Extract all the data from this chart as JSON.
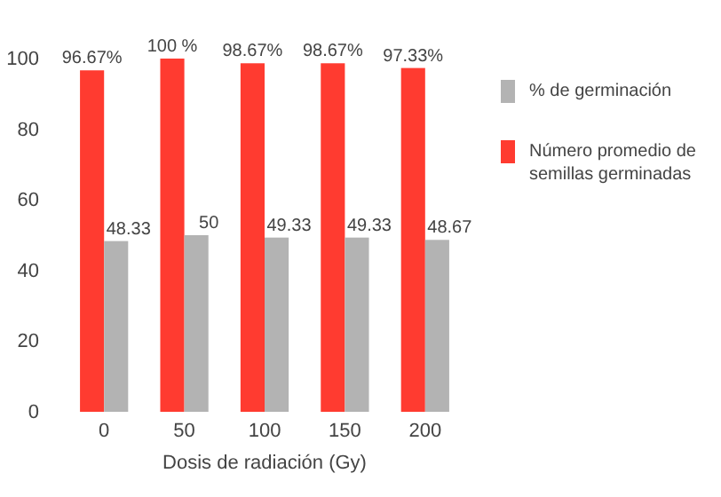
{
  "chart_data": {
    "type": "bar",
    "xlabel": "Dosis de radiación (Gy)",
    "categories": [
      "0",
      "50",
      "100",
      "150",
      "200"
    ],
    "ylim": [
      0,
      100
    ],
    "yticks": [
      0,
      20,
      40,
      60,
      80,
      100
    ],
    "grid": false,
    "legend": "right",
    "series": [
      {
        "name": "Número promedio de semillas germinadas",
        "color": "#ff3b30",
        "values": [
          96.67,
          100,
          98.67,
          98.67,
          97.33
        ],
        "value_labels": [
          "96.67%",
          "100 %",
          "98.67%",
          "98.67%",
          "97.33%"
        ]
      },
      {
        "name": "% de germinación",
        "color": "#b3b3b3",
        "values": [
          48.33,
          50,
          49.33,
          49.33,
          48.67
        ],
        "value_labels": [
          "48.33",
          "50",
          "49.33",
          "49.33",
          "48.67"
        ]
      }
    ]
  }
}
